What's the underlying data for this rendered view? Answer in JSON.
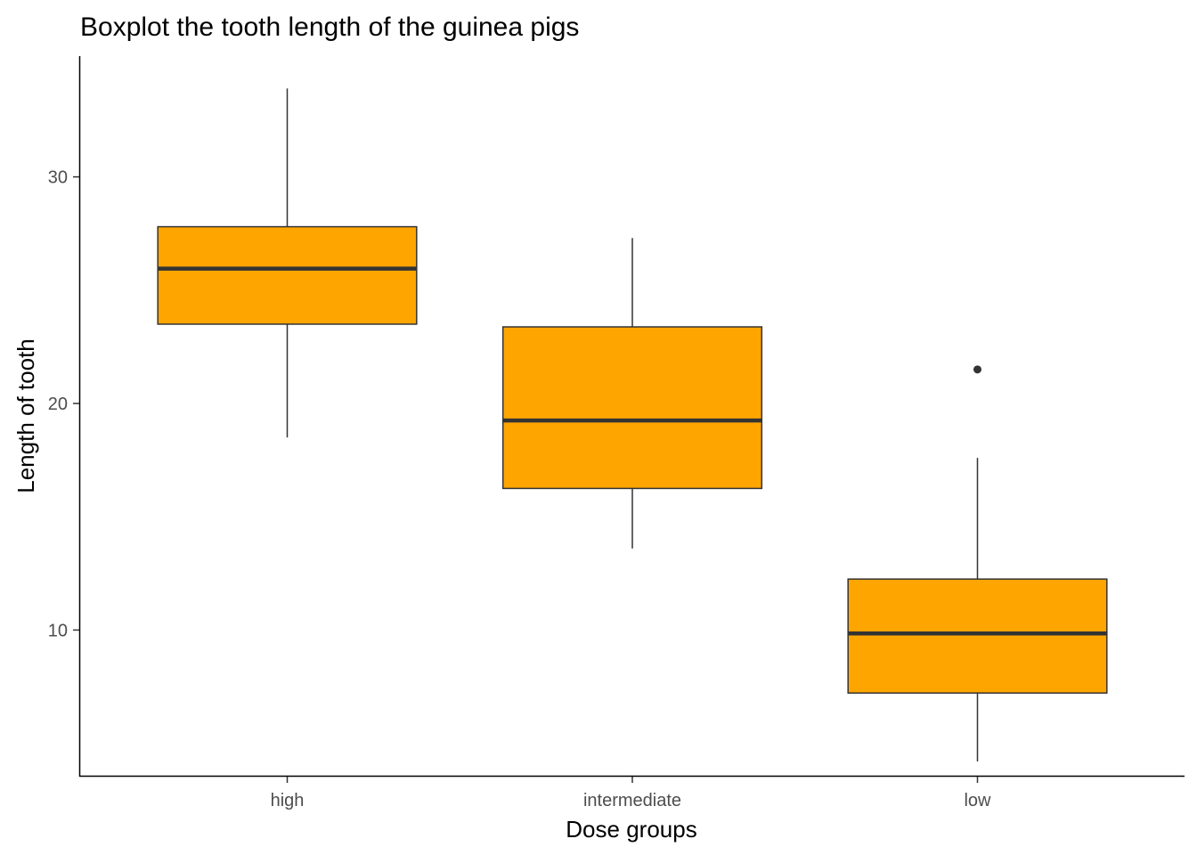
{
  "chart_data": {
    "type": "boxplot",
    "title": "Boxplot the tooth length of the guinea pigs",
    "xlabel": "Dose groups",
    "ylabel": "Length of tooth",
    "categories": [
      "high",
      "intermediate",
      "low"
    ],
    "ylim": [
      3.57,
      35.33
    ],
    "y_ticks": [
      10,
      20,
      30
    ],
    "grid": false,
    "legend": "none",
    "fill_color": "#FFA500",
    "stroke_color": "#333333",
    "boxes": [
      {
        "category": "high",
        "min": 18.5,
        "q1": 23.5,
        "median": 25.95,
        "q3": 27.8,
        "max": 33.9,
        "outliers": []
      },
      {
        "category": "intermediate",
        "min": 13.6,
        "q1": 16.25,
        "median": 19.25,
        "q3": 23.38,
        "max": 27.3,
        "outliers": []
      },
      {
        "category": "low",
        "min": 4.2,
        "q1": 7.22,
        "median": 9.85,
        "q3": 12.25,
        "max": 17.6,
        "outliers": [
          21.5
        ]
      }
    ]
  }
}
